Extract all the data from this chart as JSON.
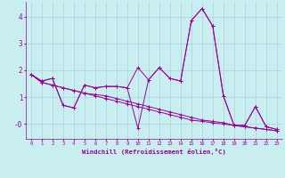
{
  "xlabel": "Windchill (Refroidissement éolien,°C)",
  "bg_color": "#c8eef0",
  "grid_color": "#aad4d8",
  "line_color": "#990099",
  "xlim": [
    -0.5,
    23.5
  ],
  "ylim": [
    -0.55,
    4.55
  ],
  "yticks": [
    0,
    1,
    2,
    3,
    4
  ],
  "ytick_labels": [
    "-0",
    "1",
    "2",
    "3",
    "4"
  ],
  "xticks": [
    0,
    1,
    2,
    3,
    4,
    5,
    6,
    7,
    8,
    9,
    10,
    11,
    12,
    13,
    14,
    15,
    16,
    17,
    18,
    19,
    20,
    21,
    22,
    23
  ],
  "series": [
    [
      1.85,
      1.6,
      1.7,
      0.7,
      0.6,
      1.45,
      1.35,
      1.4,
      1.4,
      1.35,
      2.1,
      1.65,
      2.1,
      1.7,
      1.6,
      3.85,
      4.3,
      3.65,
      1.05,
      -0.05,
      -0.05,
      0.65,
      -0.1,
      -0.2
    ],
    [
      1.85,
      1.6,
      1.7,
      0.7,
      0.6,
      1.45,
      1.35,
      1.4,
      1.4,
      1.35,
      -0.15,
      1.65,
      2.1,
      1.7,
      1.6,
      3.85,
      4.3,
      3.65,
      1.05,
      -0.05,
      -0.05,
      0.65,
      -0.1,
      -0.2
    ],
    [
      1.85,
      1.55,
      1.45,
      1.35,
      1.25,
      1.15,
      1.1,
      1.05,
      0.95,
      0.85,
      0.75,
      0.65,
      0.55,
      0.45,
      0.35,
      0.25,
      0.15,
      0.1,
      0.05,
      -0.05,
      -0.1,
      -0.15,
      -0.2,
      -0.25
    ],
    [
      1.85,
      1.55,
      1.45,
      1.35,
      1.25,
      1.15,
      1.05,
      0.95,
      0.85,
      0.75,
      0.65,
      0.55,
      0.45,
      0.35,
      0.25,
      0.15,
      0.1,
      0.05,
      0.0,
      -0.05,
      -0.1,
      -0.15,
      -0.2,
      -0.25
    ]
  ]
}
